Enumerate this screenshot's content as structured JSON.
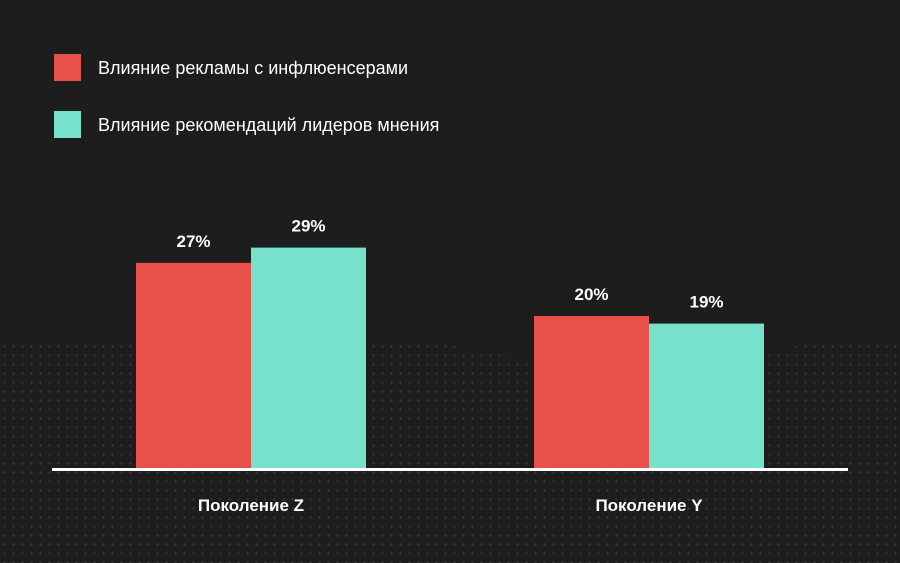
{
  "colors": {
    "background": "#1d1d1d",
    "dots": "#3a3a3a",
    "axis": "#ffffff",
    "text": "#ffffff"
  },
  "chart_data": {
    "type": "bar",
    "categories": [
      "Поколение Z",
      "Поколение Y"
    ],
    "series": [
      {
        "name": "Влияние рекламы с инфлюенсерами",
        "color": "#e8504a",
        "values": [
          27,
          20
        ],
        "labels": [
          "27%",
          "20%"
        ]
      },
      {
        "name": "Влияние рекомендаций лидеров мнения",
        "color": "#76e2cc",
        "values": [
          29,
          19
        ],
        "labels": [
          "29%",
          "19%"
        ]
      }
    ],
    "title": "",
    "xlabel": "",
    "ylabel": "",
    "ylim": [
      0,
      35
    ],
    "grid": false,
    "legend_position": "top-left"
  }
}
